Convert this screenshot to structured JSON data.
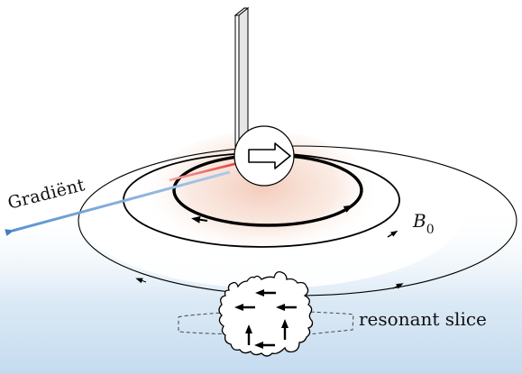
{
  "labels": {
    "gradient": "Gradiënt",
    "b0_main": "B",
    "b0_sub": "0",
    "resonant_slice": "resonant slice"
  },
  "colors": {
    "gradient_arrow": "#6a9fd6",
    "gradient_tint": "#cfe1f2",
    "center_glow": "#f3c9b8",
    "field_line": "#000000",
    "red_segment": "#e63c3c"
  },
  "icons": {
    "central_dipole": "right-arrow-icon",
    "spin_arrows": "arrow-icon"
  }
}
